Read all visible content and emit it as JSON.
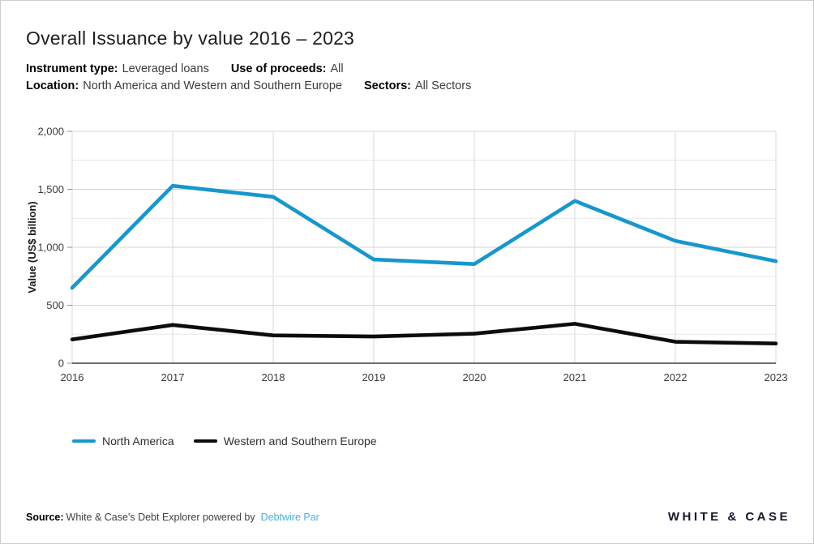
{
  "header": {
    "title": "Overall Issuance by value 2016 – 2023",
    "meta": [
      {
        "label": "Instrument type:",
        "value": "Leveraged loans"
      },
      {
        "label": "Use of proceeds:",
        "value": "All"
      },
      {
        "label": "Location:",
        "value": "North America and Western and Southern Europe"
      },
      {
        "label": "Sectors:",
        "value": "All Sectors"
      }
    ]
  },
  "chart_data": {
    "type": "line",
    "title": "Overall Issuance by value 2016 – 2023",
    "categories": [
      "2016",
      "2017",
      "2018",
      "2019",
      "2020",
      "2021",
      "2022",
      "2023"
    ],
    "series": [
      {
        "name": "North America",
        "color": "#1697cd",
        "values": [
          650,
          1530,
          1435,
          895,
          855,
          1400,
          1055,
          880
        ]
      },
      {
        "name": "Western and Southern Europe",
        "color": "#0c0c0c",
        "values": [
          205,
          330,
          240,
          230,
          255,
          340,
          185,
          170
        ]
      }
    ],
    "xlabel": "",
    "ylabel": "Value (US$ billion)",
    "ylim": [
      0,
      2000
    ],
    "ytick_step": 500,
    "minor_step": 250,
    "ytick_labels": [
      "0",
      "500",
      "1,000",
      "1,500",
      "2,000"
    ],
    "grid": true,
    "legend_position": "bottom"
  },
  "footer": {
    "source_label": "Source:",
    "source_text": "White & Case's Debt Explorer powered by",
    "source_link": "Debtwire Par",
    "logo": "WHITE & CASE"
  },
  "colors": {
    "accent_blue": "#1697cd",
    "link_blue": "#47b1e3",
    "line_black": "#0c0c0c",
    "grid_major": "#d4d4d4",
    "grid_minor": "#e7e7e7",
    "axis": "#3f3f3f"
  }
}
